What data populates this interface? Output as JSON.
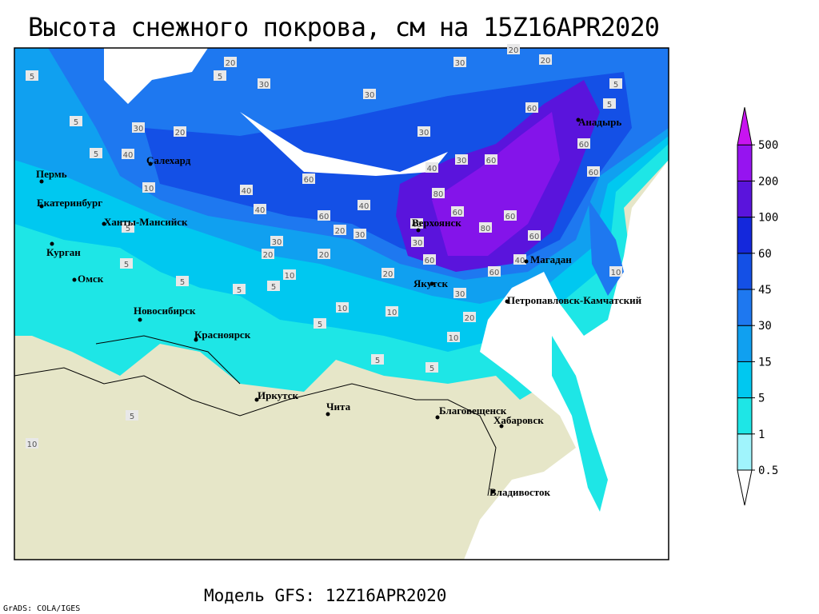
{
  "header": {
    "title": "Высота снежного покрова, см на 15Z16APR2020"
  },
  "map": {
    "cities": [
      "Пермь",
      "Екатеринбург",
      "Ханты-Мансийск",
      "Курган",
      "Омск",
      "Новосибирск",
      "Красноярск",
      "Иркутск",
      "Чита",
      "Благовещенск",
      "Хабаровск",
      "Владивосток",
      "Якутск",
      "Верхоянск",
      "Магадан",
      "Петропавловск-Камчатский",
      "Анадырь",
      "Салехард"
    ],
    "contour_labels": [
      20,
      5,
      30,
      30,
      30,
      20,
      20,
      5,
      5,
      30,
      20,
      5,
      40,
      10,
      40,
      40,
      60,
      40,
      60,
      20,
      30,
      30,
      20,
      20,
      10,
      5,
      5,
      5,
      20,
      10,
      10,
      5,
      30,
      30,
      60,
      40,
      80,
      40,
      60,
      80,
      60,
      60,
      30,
      60,
      40,
      60,
      30,
      20,
      10,
      5,
      5,
      5,
      5,
      60,
      60,
      60,
      10,
      5,
      5,
      10,
      5
    ]
  },
  "legend": {
    "levels": [
      0.5,
      1,
      5,
      15,
      30,
      45,
      60,
      100,
      200,
      500
    ],
    "colors": [
      "#ffffff",
      "#a0f4fc",
      "#1ee6e6",
      "#00c8f0",
      "#10a0f0",
      "#1e78f0",
      "#1450e6",
      "#1428dc",
      "#5a14dc",
      "#9614f0",
      "#c814f0"
    ]
  },
  "footer": {
    "model": "Модель GFS: 12Z16APR2020",
    "credit": "GrADS: COLA/IGES"
  }
}
